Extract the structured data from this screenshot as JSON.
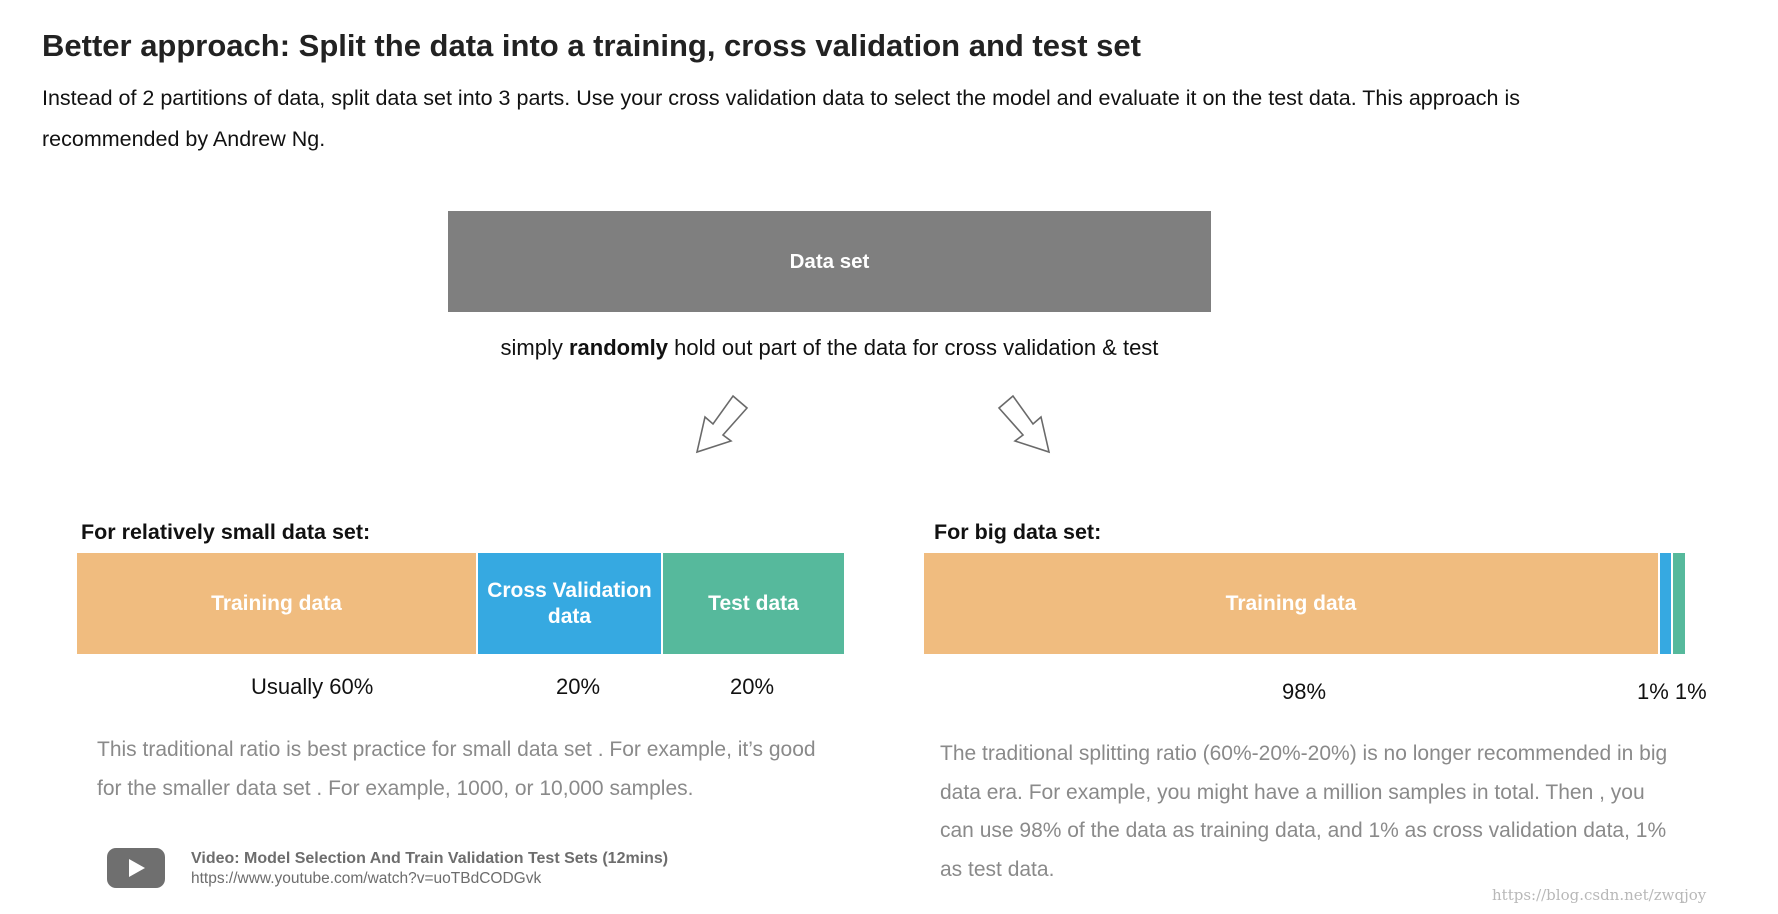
{
  "title": "Better approach: Split the data into a training, cross validation and test set",
  "intro": "Instead of 2 partitions of data, split data set into 3 parts. Use your cross validation data to select the model and evaluate it on the test data. This approach is recommended by Andrew Ng.",
  "dataset_label": "Data set",
  "holdout": {
    "prefix": "simply ",
    "emphasis": "randomly",
    "suffix": " hold out part of the data for cross validation & test"
  },
  "arrows": {
    "left_icon": "down-left-arrow-icon",
    "right_icon": "down-right-arrow-icon"
  },
  "small": {
    "heading": "For relatively small data set:",
    "segments": [
      {
        "label": "Training data",
        "color": "#f0bc7f",
        "pct_label": "Usually 60%",
        "share": 60
      },
      {
        "label": "Cross Validation data",
        "color": "#36a9e1",
        "pct_label": "20%",
        "share": 20
      },
      {
        "label": "Test  data",
        "color": "#56b99c",
        "pct_label": "20%",
        "share": 20
      }
    ],
    "description": "This traditional ratio is best practice for small data set . For example, it’s good for the smaller data set . For example,  1000, or 10,000 samples."
  },
  "big": {
    "heading": "For big data set:",
    "segments": [
      {
        "label": "Training data",
        "color": "#f0bc7f",
        "share": 98
      },
      {
        "label": "",
        "color": "#36a9e1",
        "share": 1
      },
      {
        "label": "",
        "color": "#56b99c",
        "share": 1
      }
    ],
    "pct_main": "98%",
    "pct_small": "1% 1%",
    "description": "The traditional splitting ratio (60%-20%-20%) is no longer recommended in big data era. For example, you might have a million samples in total. Then , you can use 98% of the data as training data, and 1% as cross validation data, 1% as test data."
  },
  "video": {
    "icon": "play-video-icon",
    "title": "Video: Model Selection And Train Validation Test Sets (12mins)",
    "url": "https://www.youtube.com/watch?v=uoTBdCODGvk"
  },
  "watermark": "https://blog.csdn.net/zwqjoy"
}
